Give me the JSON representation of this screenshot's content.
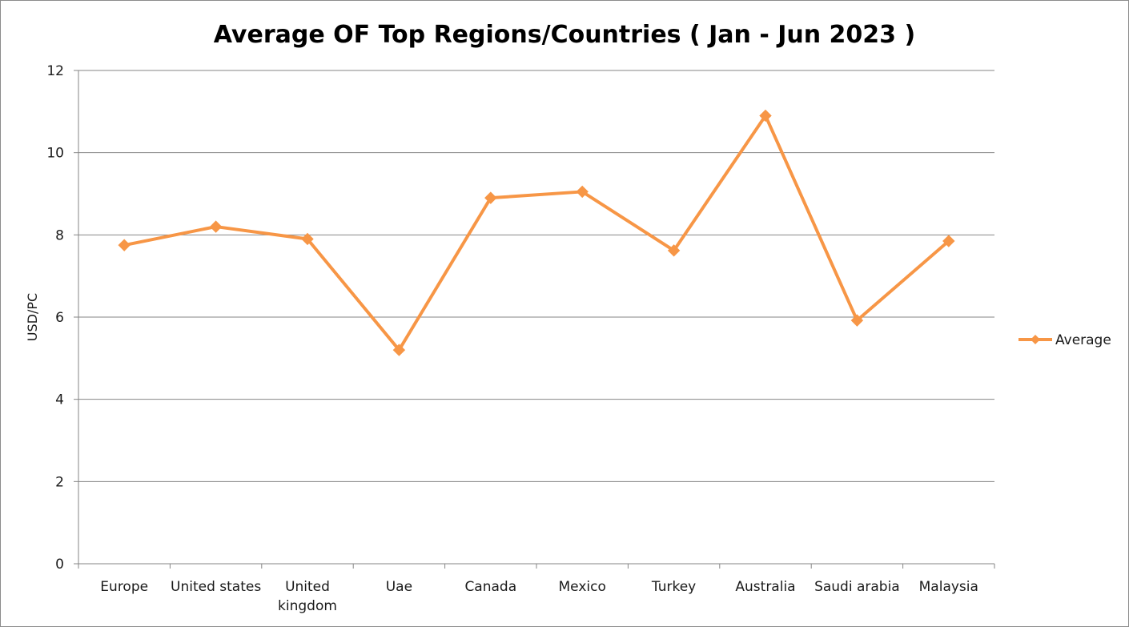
{
  "chart_data": {
    "type": "line",
    "title": "Average OF Top Regions/Countries ( Jan - Jun 2023 )",
    "xlabel": "",
    "ylabel": "USD/PC",
    "ylim": [
      0,
      12
    ],
    "yticks": [
      0,
      2,
      4,
      6,
      8,
      10,
      12
    ],
    "grid": true,
    "legend_position": "right",
    "categories": [
      [
        "Europe"
      ],
      [
        "United states"
      ],
      [
        "United",
        "kingdom"
      ],
      [
        "Uae"
      ],
      [
        "Canada"
      ],
      [
        "Mexico"
      ],
      [
        "Turkey"
      ],
      [
        "Australia"
      ],
      [
        "Saudi arabia"
      ],
      [
        "Malaysia"
      ]
    ],
    "series": [
      {
        "name": "Average",
        "color": "#F79646",
        "marker": "diamond",
        "values": [
          7.75,
          8.2,
          7.9,
          5.2,
          8.9,
          9.05,
          7.62,
          10.9,
          5.92,
          7.85
        ]
      }
    ]
  }
}
